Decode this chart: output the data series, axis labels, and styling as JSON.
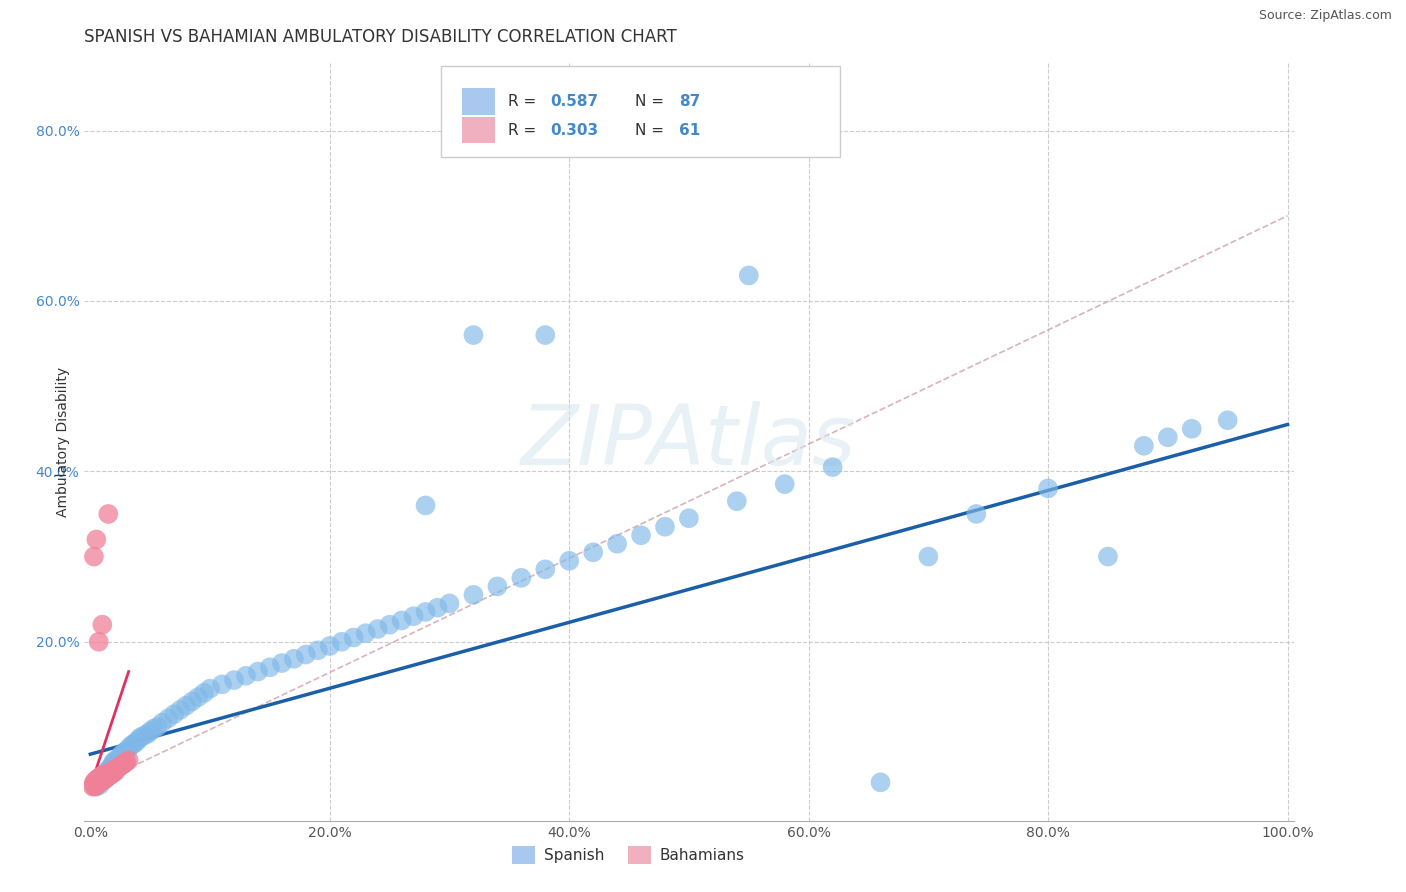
{
  "title": "SPANISH VS BAHAMIAN AMBULATORY DISABILITY CORRELATION CHART",
  "source": "Source: ZipAtlas.com",
  "ylabel": "Ambulatory Disability",
  "xlim": [
    -0.005,
    1.005
  ],
  "ylim": [
    -0.01,
    0.88
  ],
  "xtick_vals": [
    0.0,
    0.2,
    0.4,
    0.6,
    0.8,
    1.0
  ],
  "xtick_labels": [
    "0.0%",
    "20.0%",
    "40.0%",
    "60.0%",
    "80.0%",
    "100.0%"
  ],
  "ytick_vals": [
    0.2,
    0.4,
    0.6,
    0.8
  ],
  "ytick_labels": [
    "20.0%",
    "40.0%",
    "60.0%",
    "80.0%"
  ],
  "spanish_R": 0.587,
  "spanish_N": 87,
  "bahamian_R": 0.303,
  "bahamian_N": 61,
  "blue_dot_color": "#7fb8e8",
  "pink_dot_color": "#f08098",
  "blue_line_color": "#1a5fa8",
  "pink_line_color": "#e03060",
  "dashed_line_color": "#d0a0a8",
  "legend_blue_box": "#a8c8f0",
  "legend_pink_box": "#f0b0c0",
  "watermark": "ZIPAtlas",
  "title_fontsize": 12,
  "label_fontsize": 10,
  "tick_fontsize": 10,
  "ytick_color": "#4488cc",
  "xtick_color": "#555555",
  "spanish_x": [
    0.005,
    0.007,
    0.008,
    0.009,
    0.01,
    0.011,
    0.012,
    0.013,
    0.014,
    0.015,
    0.016,
    0.017,
    0.018,
    0.019,
    0.02,
    0.022,
    0.024,
    0.025,
    0.026,
    0.028,
    0.03,
    0.032,
    0.034,
    0.036,
    0.038,
    0.04,
    0.042,
    0.045,
    0.048,
    0.05,
    0.053,
    0.056,
    0.06,
    0.065,
    0.07,
    0.075,
    0.08,
    0.085,
    0.09,
    0.095,
    0.1,
    0.11,
    0.12,
    0.13,
    0.14,
    0.15,
    0.16,
    0.17,
    0.18,
    0.19,
    0.2,
    0.21,
    0.22,
    0.23,
    0.24,
    0.25,
    0.26,
    0.27,
    0.28,
    0.29,
    0.3,
    0.32,
    0.34,
    0.36,
    0.38,
    0.4,
    0.42,
    0.44,
    0.46,
    0.48,
    0.5,
    0.54,
    0.58,
    0.62,
    0.66,
    0.7,
    0.74,
    0.8,
    0.85,
    0.88,
    0.9,
    0.92,
    0.95,
    0.28,
    0.38,
    0.55,
    0.32
  ],
  "spanish_y": [
    0.03,
    0.035,
    0.032,
    0.038,
    0.04,
    0.042,
    0.038,
    0.045,
    0.048,
    0.05,
    0.045,
    0.052,
    0.055,
    0.058,
    0.06,
    0.062,
    0.058,
    0.065,
    0.068,
    0.07,
    0.072,
    0.075,
    0.078,
    0.08,
    0.082,
    0.085,
    0.088,
    0.09,
    0.092,
    0.095,
    0.098,
    0.1,
    0.105,
    0.11,
    0.115,
    0.12,
    0.125,
    0.13,
    0.135,
    0.14,
    0.145,
    0.15,
    0.155,
    0.16,
    0.165,
    0.17,
    0.175,
    0.18,
    0.185,
    0.19,
    0.195,
    0.2,
    0.205,
    0.21,
    0.215,
    0.22,
    0.225,
    0.23,
    0.235,
    0.24,
    0.245,
    0.255,
    0.265,
    0.275,
    0.285,
    0.295,
    0.305,
    0.315,
    0.325,
    0.335,
    0.345,
    0.365,
    0.385,
    0.405,
    0.035,
    0.3,
    0.35,
    0.38,
    0.3,
    0.43,
    0.44,
    0.45,
    0.46,
    0.36,
    0.56,
    0.63,
    0.56
  ],
  "bahamian_x": [
    0.002,
    0.003,
    0.003,
    0.004,
    0.004,
    0.004,
    0.005,
    0.005,
    0.005,
    0.006,
    0.006,
    0.006,
    0.007,
    0.007,
    0.007,
    0.008,
    0.008,
    0.008,
    0.009,
    0.009,
    0.009,
    0.01,
    0.01,
    0.01,
    0.011,
    0.011,
    0.011,
    0.012,
    0.012,
    0.013,
    0.013,
    0.014,
    0.014,
    0.015,
    0.015,
    0.016,
    0.016,
    0.017,
    0.017,
    0.018,
    0.018,
    0.019,
    0.019,
    0.02,
    0.02,
    0.021,
    0.022,
    0.023,
    0.024,
    0.025,
    0.026,
    0.027,
    0.028,
    0.029,
    0.03,
    0.032,
    0.003,
    0.005,
    0.007,
    0.01,
    0.015
  ],
  "bahamian_y": [
    0.03,
    0.032,
    0.035,
    0.03,
    0.033,
    0.036,
    0.032,
    0.035,
    0.038,
    0.033,
    0.036,
    0.039,
    0.034,
    0.037,
    0.04,
    0.035,
    0.038,
    0.041,
    0.036,
    0.039,
    0.042,
    0.037,
    0.04,
    0.043,
    0.038,
    0.041,
    0.044,
    0.039,
    0.042,
    0.04,
    0.043,
    0.041,
    0.044,
    0.042,
    0.045,
    0.043,
    0.046,
    0.044,
    0.047,
    0.045,
    0.048,
    0.046,
    0.049,
    0.047,
    0.05,
    0.048,
    0.051,
    0.052,
    0.053,
    0.054,
    0.055,
    0.056,
    0.057,
    0.058,
    0.059,
    0.061,
    0.3,
    0.32,
    0.2,
    0.22,
    0.35
  ],
  "blue_regr": [
    0.0,
    1.0,
    0.068,
    0.455
  ],
  "pink_regr": [
    0.0,
    0.032,
    0.03,
    0.165
  ],
  "dashed_regr": [
    0.0,
    1.0,
    0.03,
    0.7
  ]
}
